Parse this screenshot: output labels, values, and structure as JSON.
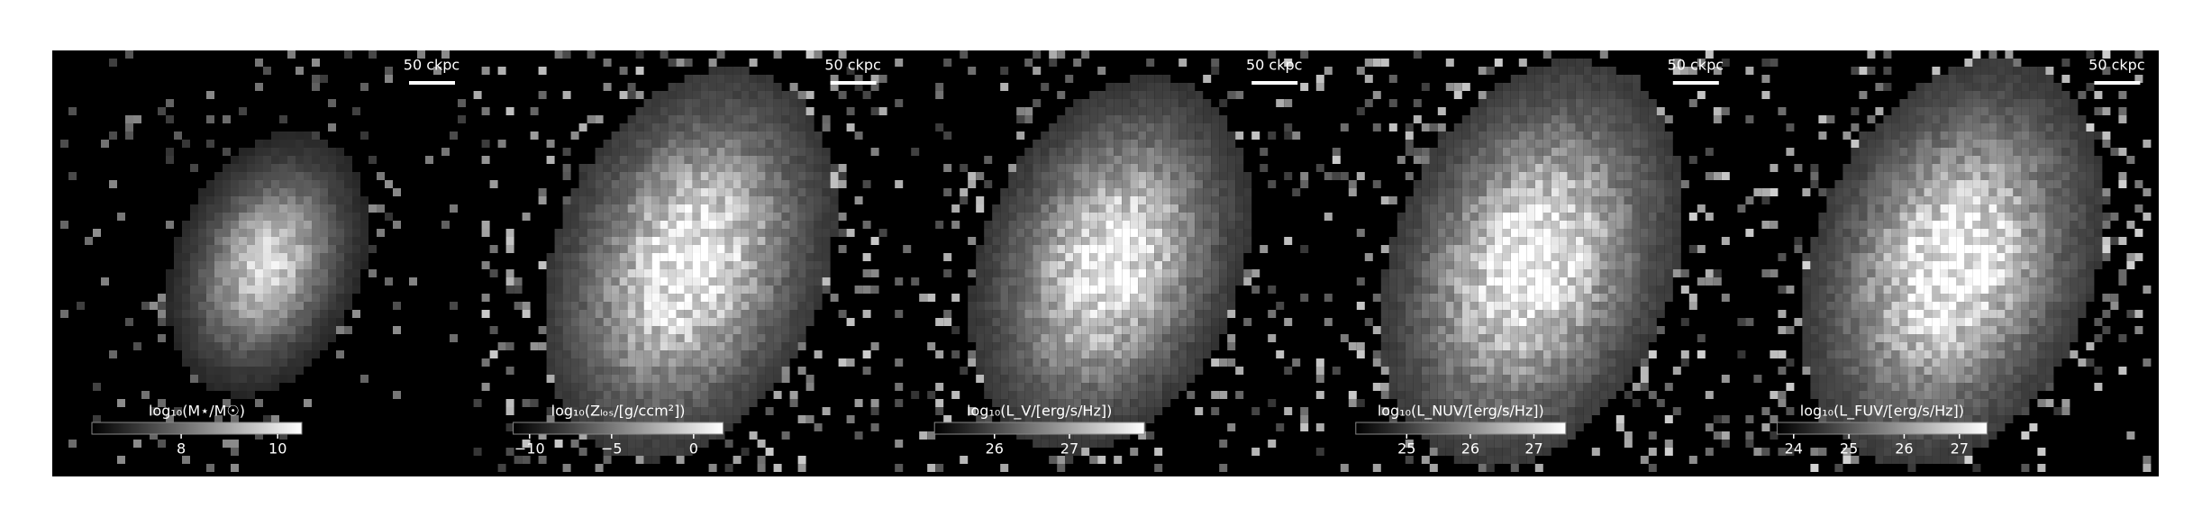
{
  "chart_data": [
    {
      "type": "image",
      "scale_bar": "50 ckpc",
      "colorbar_label": "log₁₀(M⋆/M☉)",
      "clim": [
        6.15,
        10.5
      ],
      "cticks": [
        8,
        10
      ]
    },
    {
      "type": "image",
      "scale_bar": "50 ckpc",
      "colorbar_label": "log₁₀(Zₗₒₛ/[g/ccm²])",
      "clim": [
        -11,
        1.8
      ],
      "cticks": [
        {
          "value": -10,
          "label": "−10"
        },
        {
          "value": -5,
          "label": "−5"
        },
        0
      ]
    },
    {
      "type": "image",
      "scale_bar": "50 ckpc",
      "colorbar_label": "log₁₀(L_V/[erg/s/Hz])",
      "clim": [
        25.2,
        28
      ],
      "cticks": [
        26,
        27
      ]
    },
    {
      "type": "image",
      "scale_bar": "50 ckpc",
      "colorbar_label": "log₁₀(L_NUV/[erg/s/Hz])",
      "clim": [
        24.2,
        27.5
      ],
      "cticks": [
        25,
        26,
        27
      ]
    },
    {
      "type": "image",
      "scale_bar": "50 ckpc",
      "colorbar_label": "log₁₀(L_FUV/[erg/s/Hz])",
      "clim": [
        23.7,
        27.5
      ],
      "cticks": [
        24,
        25,
        26,
        27
      ]
    }
  ]
}
